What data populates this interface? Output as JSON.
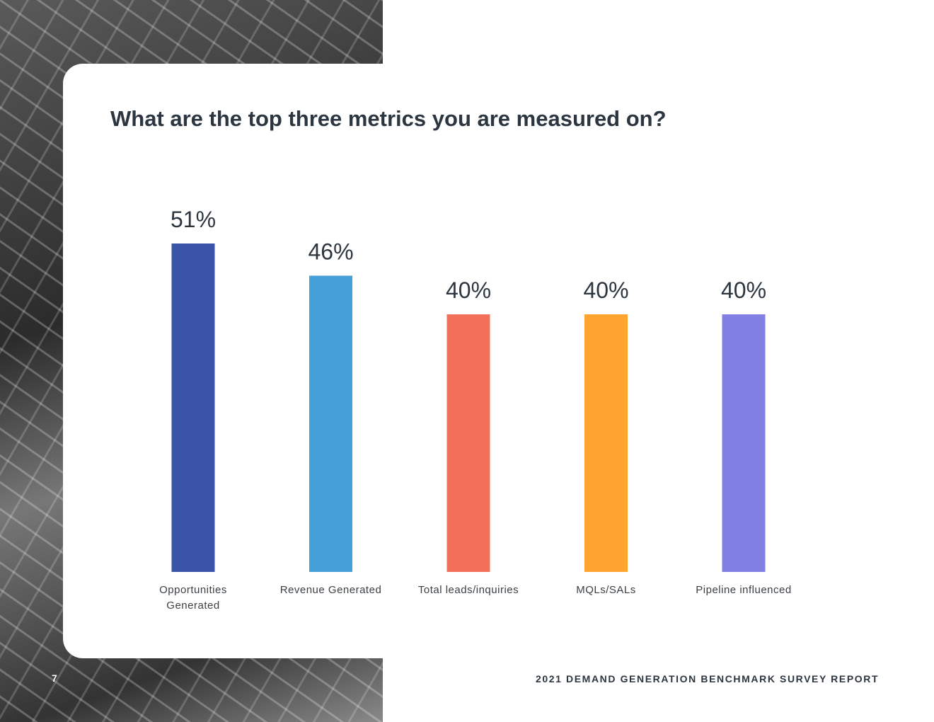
{
  "chart_data": {
    "type": "bar",
    "title": "What are the top three metrics you are measured on?",
    "categories": [
      "Opportunities Generated",
      "Revenue Generated",
      "Total leads/inquiries",
      "MQLs/SALs",
      "Pipeline influenced"
    ],
    "category_lines": [
      [
        "Opportunities",
        "Generated"
      ],
      [
        "Revenue Generated"
      ],
      [
        "Total leads/inquiries"
      ],
      [
        "MQLs/SALs"
      ],
      [
        "Pipeline influenced"
      ]
    ],
    "values": [
      51,
      46,
      40,
      40,
      40
    ],
    "data_labels": [
      "51%",
      "46%",
      "40%",
      "40%",
      "40%"
    ],
    "colors": [
      "#3a55a7",
      "#459fd9",
      "#f27059",
      "#ffa42e",
      "#8180e2"
    ],
    "xlabel": "",
    "ylabel": "",
    "ylim": [
      0,
      51
    ],
    "grid": false
  },
  "page_number": "7",
  "footer": "2021 DEMAND GENERATION BENCHMARK SURVEY REPORT"
}
